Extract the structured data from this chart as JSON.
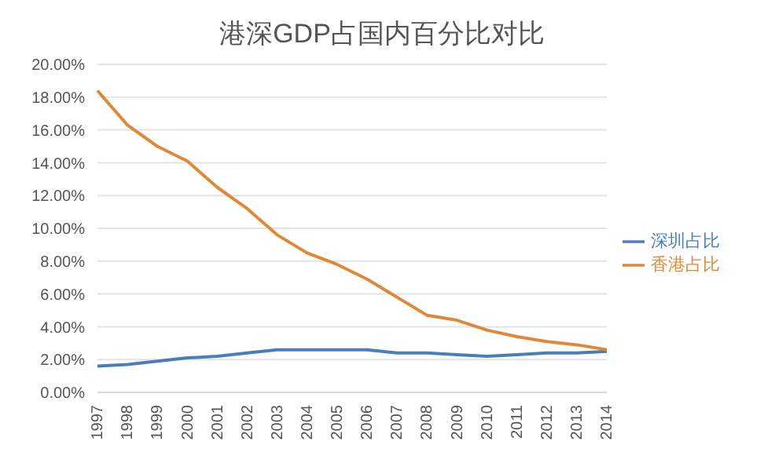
{
  "chart_data": {
    "type": "line",
    "title": "港深GDP占国内百分比对比",
    "categories": [
      "1997",
      "1998",
      "1999",
      "2000",
      "2001",
      "2002",
      "2003",
      "2004",
      "2005",
      "2006",
      "2007",
      "2008",
      "2009",
      "2010",
      "2011",
      "2012",
      "2013",
      "2014"
    ],
    "series": [
      {
        "name": "深圳占比",
        "color": "#4a7ebb",
        "values": [
          1.6,
          1.7,
          1.9,
          2.1,
          2.2,
          2.4,
          2.6,
          2.6,
          2.6,
          2.6,
          2.4,
          2.4,
          2.3,
          2.2,
          2.3,
          2.4,
          2.4,
          2.5
        ]
      },
      {
        "name": "香港占比",
        "color": "#e0883a",
        "values": [
          18.4,
          16.3,
          15.0,
          14.1,
          12.5,
          11.2,
          9.6,
          8.5,
          7.8,
          6.9,
          5.8,
          4.7,
          4.4,
          3.8,
          3.4,
          3.1,
          2.9,
          2.6
        ]
      }
    ],
    "ylim": [
      0,
      20
    ],
    "yticks": [
      {
        "value": 0,
        "label": "0.00%"
      },
      {
        "value": 2,
        "label": "2.00%"
      },
      {
        "value": 4,
        "label": "4.00%"
      },
      {
        "value": 6,
        "label": "6.00%"
      },
      {
        "value": 8,
        "label": "8.00%"
      },
      {
        "value": 10,
        "label": "10.00%"
      },
      {
        "value": 12,
        "label": "12.00%"
      },
      {
        "value": 14,
        "label": "14.00%"
      },
      {
        "value": 16,
        "label": "16.00%"
      },
      {
        "value": 18,
        "label": "18.00%"
      },
      {
        "value": 20,
        "label": "20.00%"
      }
    ],
    "grid": "y",
    "legend": "right",
    "marker": "none",
    "line_style": "solid"
  }
}
